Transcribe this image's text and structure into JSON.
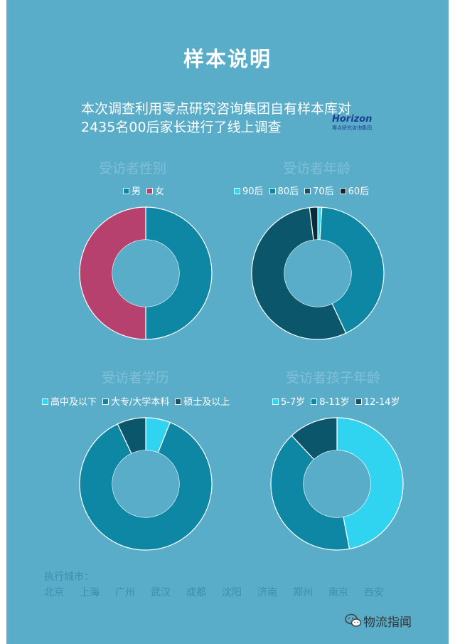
{
  "title": "样本说明",
  "intro": {
    "line1": "本次调查利用零点研究咨询集团自有样本库对",
    "line2": "2435名00后家长进行了线上调查"
  },
  "logo": {
    "word": "Horizon",
    "sub": "零点研究咨询集团"
  },
  "chart_data": [
    {
      "type": "pie",
      "title": "受访者性别",
      "categories": [
        "男",
        "女"
      ],
      "values": [
        50,
        50
      ],
      "colors": [
        "#0d87a3",
        "#b6416f"
      ],
      "legend": "top"
    },
    {
      "type": "pie",
      "title": "受访者年龄",
      "categories": [
        "90后",
        "80后",
        "70后",
        "60后"
      ],
      "values": [
        1,
        42,
        55,
        2
      ],
      "colors": [
        "#31d4f0",
        "#0d87a3",
        "#0b566b",
        "#062c38"
      ],
      "legend": "top"
    },
    {
      "type": "pie",
      "title": "受访者学历",
      "categories": [
        "高中及以下",
        "大专/大学本科",
        "硕士及以上"
      ],
      "values": [
        6,
        87,
        7
      ],
      "colors": [
        "#31d4f0",
        "#0d87a3",
        "#0b566b"
      ],
      "legend": "top"
    },
    {
      "type": "pie",
      "title": "受访者孩子年龄",
      "categories": [
        "5-7岁",
        "8-11岁",
        "12-14岁"
      ],
      "values": [
        47,
        41,
        12
      ],
      "colors": [
        "#31d4f0",
        "#0d87a3",
        "#0b566b"
      ],
      "legend": "top"
    }
  ],
  "cities": {
    "label": "执行城市：",
    "list": [
      "北京",
      "上海",
      "广州",
      "武汉",
      "成都",
      "沈阳",
      "济南",
      "郑州",
      "南京",
      "西安"
    ]
  },
  "footer": {
    "account": "物流指闻",
    "icon": "wechat-icon"
  }
}
